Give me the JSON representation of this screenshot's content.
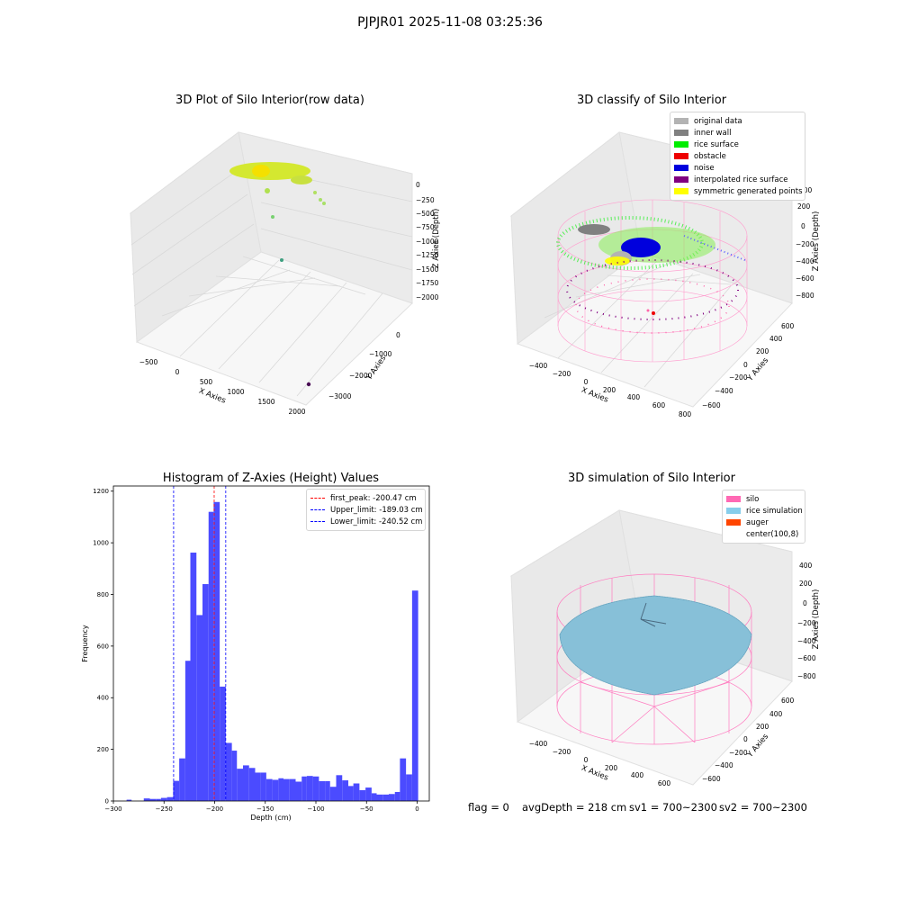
{
  "suptitle": "PJPJR01 2025-11-08 03:25:36",
  "panels": {
    "raw": {
      "title": "3D Plot of Silo Interior(row data)",
      "xlabel": "X Axies",
      "ylabel": "Y Axies",
      "zlabel": "Z Axies (Depth)",
      "xticks": [
        "−500",
        "0",
        "500",
        "1000",
        "1500",
        "2000"
      ],
      "yticks": [
        "0",
        "−1000",
        "−2000",
        "−3000"
      ],
      "zticks": [
        "0",
        "−250",
        "−500",
        "−750",
        "−1000",
        "−1250",
        "−1500",
        "−1750",
        "−2000"
      ]
    },
    "classify": {
      "title": "3D classify of Silo Interior",
      "xlabel": "X Axies",
      "ylabel": "Y Axies",
      "zlabel": "Z Axies (Depth)",
      "xticks": [
        "−400",
        "−200",
        "0",
        "200",
        "400",
        "600",
        "800"
      ],
      "yticks": [
        "600",
        "400",
        "200",
        "0",
        "−200",
        "−400",
        "−600"
      ],
      "zticks": [
        "200",
        "0",
        "−200",
        "−400",
        "−600",
        "−800"
      ],
      "zticks_hidden_top": "400",
      "legend": [
        {
          "label": "original data",
          "color": "#b3b3b3"
        },
        {
          "label": "inner wall",
          "color": "#808080"
        },
        {
          "label": "rice surface",
          "color": "#00ee00"
        },
        {
          "label": "obstacle",
          "color": "#ee0000"
        },
        {
          "label": "noise",
          "color": "#0000dd"
        },
        {
          "label": "interpolated rice surface",
          "color": "#800080"
        },
        {
          "label": "symmetric generated points",
          "color": "#ffff00"
        }
      ]
    },
    "simulation": {
      "title": "3D simulation of Silo Interior",
      "xlabel": "X Axies",
      "ylabel": "Y Axies",
      "zlabel": "Z Axies (Depth)",
      "xticks": [
        "−400",
        "−200",
        "0",
        "200",
        "400",
        "600"
      ],
      "yticks": [
        "600",
        "400",
        "200",
        "0",
        "−200",
        "−400",
        "−600"
      ],
      "zticks": [
        "400",
        "200",
        "0",
        "−200",
        "−400",
        "−600",
        "−800"
      ],
      "legend": [
        {
          "label": "silo",
          "color": "#ff69b4"
        },
        {
          "label": "rice simulation",
          "color": "#87ceeb"
        },
        {
          "label": "auger",
          "color": "#ff4500"
        },
        {
          "label": "center(100,8)",
          "color": ""
        }
      ]
    }
  },
  "footer": {
    "flag": "flag = 0",
    "avg": "avgDepth = 218 cm",
    "sv1": "sv1 = 700~2300",
    "sv2": "sv2 = 700~2300"
  },
  "chart_data": [
    {
      "type": "histogram",
      "title": "Histogram of Z-Axies (Height) Values",
      "xlabel": "Depth (cm)",
      "ylabel": "Frequency",
      "xlim": [
        -300,
        12
      ],
      "ylim": [
        0,
        1220
      ],
      "xticks": [
        -300,
        -250,
        -200,
        -150,
        -100,
        -50,
        0
      ],
      "yticks": [
        0,
        200,
        400,
        600,
        800,
        1000,
        1200
      ],
      "bar_color": "#4b4bff",
      "bins": [
        {
          "x0": -287,
          "x1": -282,
          "count": 5
        },
        {
          "x0": -270,
          "x1": -264,
          "count": 10
        },
        {
          "x0": -264,
          "x1": -258,
          "count": 8
        },
        {
          "x0": -258,
          "x1": -253,
          "count": 8
        },
        {
          "x0": -253,
          "x1": -247,
          "count": 12
        },
        {
          "x0": -247,
          "x1": -241,
          "count": 15
        },
        {
          "x0": -241,
          "x1": -235,
          "count": 78
        },
        {
          "x0": -235,
          "x1": -229,
          "count": 165
        },
        {
          "x0": -229,
          "x1": -224,
          "count": 543
        },
        {
          "x0": -224,
          "x1": -218,
          "count": 962
        },
        {
          "x0": -218,
          "x1": -212,
          "count": 720
        },
        {
          "x0": -212,
          "x1": -206,
          "count": 840
        },
        {
          "x0": -206,
          "x1": -201,
          "count": 1120
        },
        {
          "x0": -201,
          "x1": -195,
          "count": 1158
        },
        {
          "x0": -195,
          "x1": -189,
          "count": 443
        },
        {
          "x0": -189,
          "x1": -183,
          "count": 225
        },
        {
          "x0": -183,
          "x1": -178,
          "count": 195
        },
        {
          "x0": -178,
          "x1": -172,
          "count": 125
        },
        {
          "x0": -172,
          "x1": -166,
          "count": 138
        },
        {
          "x0": -166,
          "x1": -160,
          "count": 128
        },
        {
          "x0": -160,
          "x1": -155,
          "count": 110
        },
        {
          "x0": -155,
          "x1": -149,
          "count": 110
        },
        {
          "x0": -149,
          "x1": -143,
          "count": 85
        },
        {
          "x0": -143,
          "x1": -137,
          "count": 82
        },
        {
          "x0": -137,
          "x1": -132,
          "count": 88
        },
        {
          "x0": -132,
          "x1": -126,
          "count": 85
        },
        {
          "x0": -126,
          "x1": -120,
          "count": 85
        },
        {
          "x0": -120,
          "x1": -114,
          "count": 75
        },
        {
          "x0": -114,
          "x1": -109,
          "count": 95
        },
        {
          "x0": -109,
          "x1": -103,
          "count": 97
        },
        {
          "x0": -103,
          "x1": -97,
          "count": 95
        },
        {
          "x0": -97,
          "x1": -91,
          "count": 77
        },
        {
          "x0": -91,
          "x1": -86,
          "count": 77
        },
        {
          "x0": -86,
          "x1": -80,
          "count": 55
        },
        {
          "x0": -80,
          "x1": -74,
          "count": 100
        },
        {
          "x0": -74,
          "x1": -68,
          "count": 80
        },
        {
          "x0": -68,
          "x1": -63,
          "count": 58
        },
        {
          "x0": -63,
          "x1": -57,
          "count": 68
        },
        {
          "x0": -57,
          "x1": -51,
          "count": 42
        },
        {
          "x0": -51,
          "x1": -45,
          "count": 52
        },
        {
          "x0": -45,
          "x1": -40,
          "count": 30
        },
        {
          "x0": -40,
          "x1": -34,
          "count": 25
        },
        {
          "x0": -34,
          "x1": -28,
          "count": 25
        },
        {
          "x0": -28,
          "x1": -22,
          "count": 27
        },
        {
          "x0": -22,
          "x1": -17,
          "count": 35
        },
        {
          "x0": -17,
          "x1": -11,
          "count": 165
        },
        {
          "x0": -11,
          "x1": -5,
          "count": 103
        },
        {
          "x0": -5,
          "x1": 1,
          "count": 815
        }
      ],
      "vlines": [
        {
          "label": "first_peak: -200.47 cm",
          "x": -200.47,
          "color": "#ff0000"
        },
        {
          "label": "Upper_limit: -189.03 cm",
          "x": -189.03,
          "color": "#0000ff"
        },
        {
          "label": "Lower_limit: -240.52 cm",
          "x": -240.52,
          "color": "#0000ff"
        }
      ],
      "legend_position": "top-right"
    }
  ]
}
